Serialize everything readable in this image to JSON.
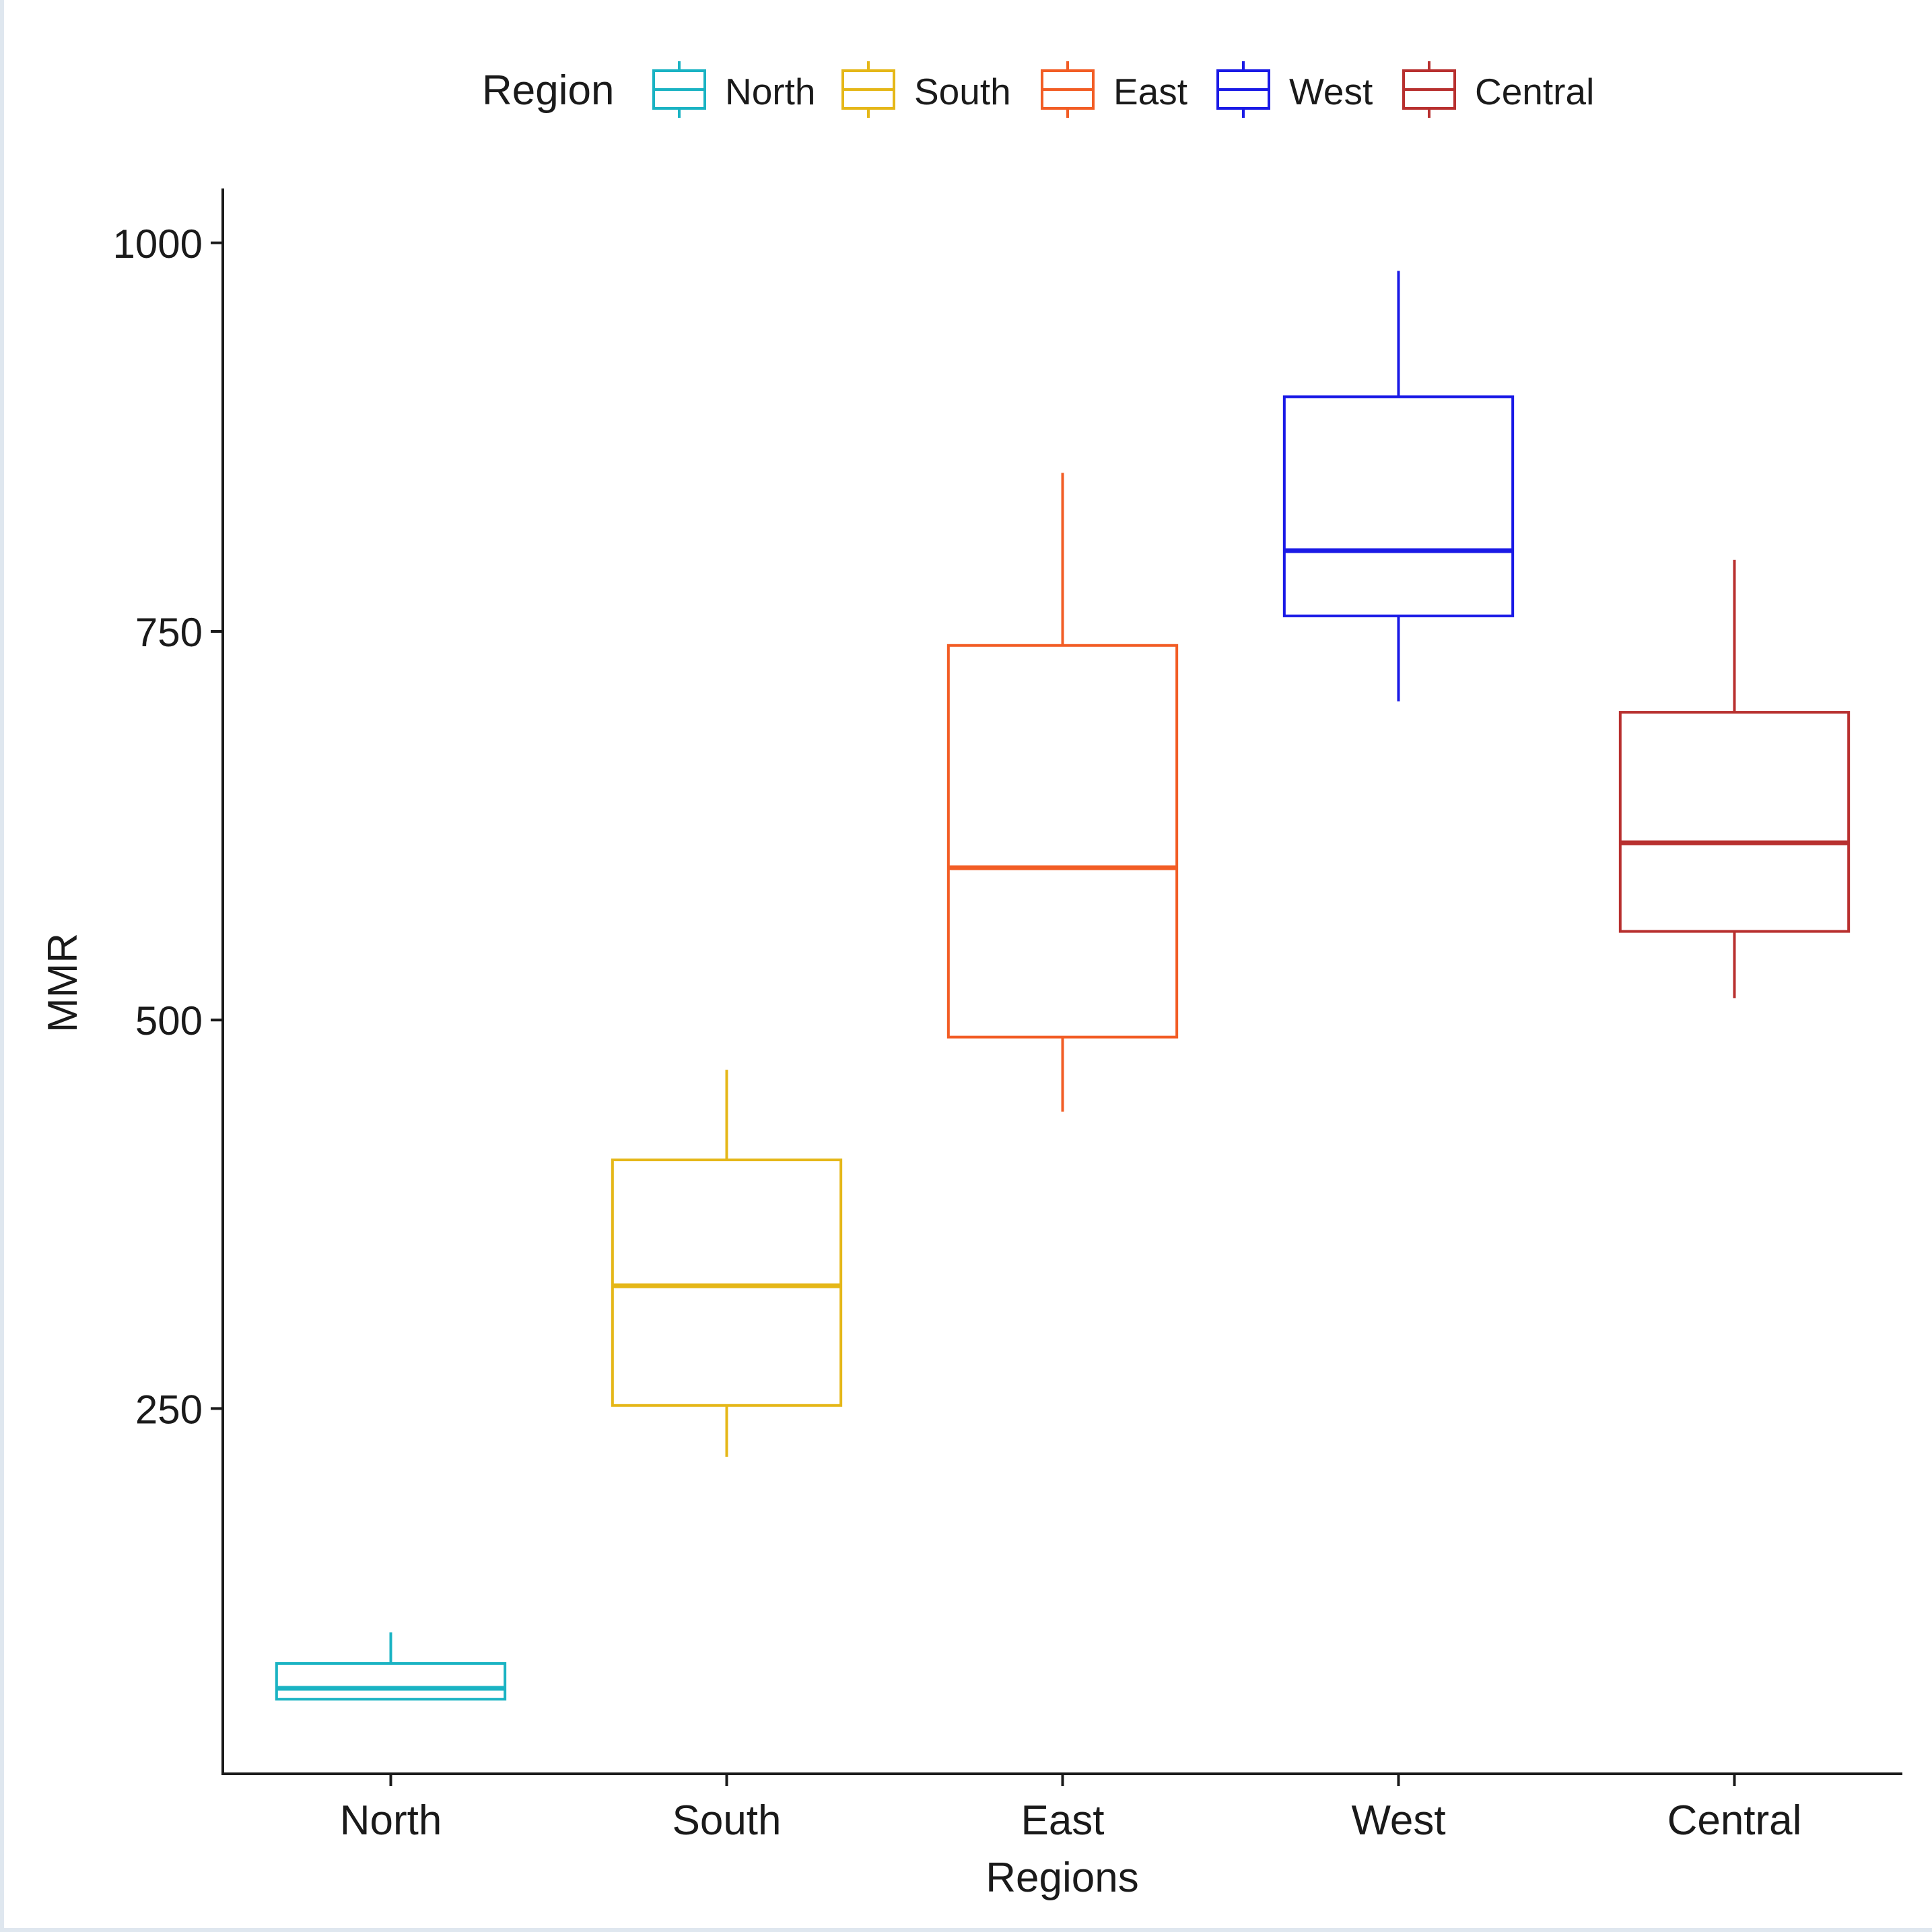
{
  "chart_data": {
    "type": "boxplot",
    "title": "",
    "xlabel": "Regions",
    "ylabel": "MMR",
    "ylim": [
      15,
      1035
    ],
    "yticks": [
      250,
      500,
      750,
      1000
    ],
    "grid": false,
    "legend": {
      "title": "Region",
      "position": "top",
      "entries": [
        "North",
        "South",
        "East",
        "West",
        "Central"
      ]
    },
    "categories": [
      "North",
      "South",
      "East",
      "West",
      "Central"
    ],
    "series": [
      {
        "name": "North",
        "color": "#1ab3c3",
        "whisker_low": 63,
        "q1": 63,
        "median": 70,
        "q3": 86,
        "whisker_high": 106
      },
      {
        "name": "South",
        "color": "#e5b718",
        "whisker_low": 219,
        "q1": 252,
        "median": 329,
        "q3": 410,
        "whisker_high": 468
      },
      {
        "name": "East",
        "color": "#f25d25",
        "whisker_low": 441,
        "q1": 489,
        "median": 598,
        "q3": 741,
        "whisker_high": 852
      },
      {
        "name": "West",
        "color": "#1a1ae6",
        "whisker_low": 705,
        "q1": 760,
        "median": 802,
        "q3": 901,
        "whisker_high": 982
      },
      {
        "name": "Central",
        "color": "#b8302f",
        "whisker_low": 514,
        "q1": 557,
        "median": 614,
        "q3": 698,
        "whisker_high": 796
      }
    ]
  }
}
